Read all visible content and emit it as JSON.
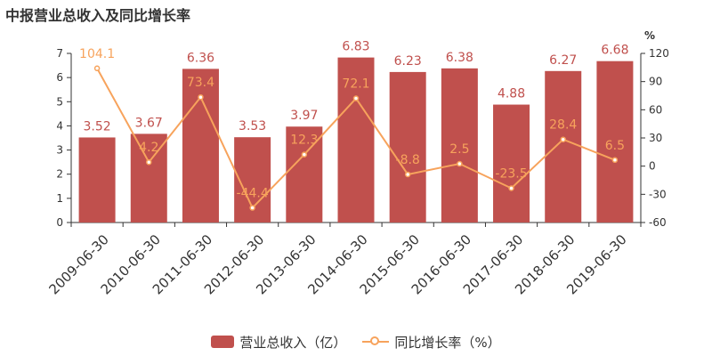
{
  "title": "中报营业总收入及同比增长率",
  "colors": {
    "bar": "#c0504d",
    "line": "#f7a35c",
    "bar_label": "#c0504d",
    "line_label": "#f7a35c",
    "axis": "#333333",
    "text": "#333333"
  },
  "legend": {
    "bar_label": "营业总收入（亿）",
    "line_label": "同比增长率（%）"
  },
  "chart_data": {
    "type": "bar",
    "title": "中报营业总收入及同比增长率",
    "categories": [
      "2009-06-30",
      "2010-06-30",
      "2011-06-30",
      "2012-06-30",
      "2013-06-30",
      "2014-06-30",
      "2015-06-30",
      "2016-06-30",
      "2017-06-30",
      "2018-06-30",
      "2019-06-30"
    ],
    "series": [
      {
        "name": "营业总收入（亿）",
        "type": "bar",
        "axis": "left",
        "values": [
          3.52,
          3.67,
          6.36,
          3.53,
          3.97,
          6.83,
          6.23,
          6.38,
          4.88,
          6.27,
          6.68
        ]
      },
      {
        "name": "同比增长率（%）",
        "type": "line",
        "axis": "right",
        "values": [
          104.1,
          4.2,
          73.4,
          -44.4,
          12.3,
          72.1,
          -8.8,
          2.5,
          -23.5,
          28.4,
          6.5
        ]
      }
    ],
    "y_left": {
      "ylim": [
        0,
        7
      ],
      "ticks": [
        0,
        1,
        2,
        3,
        4,
        5,
        6,
        7
      ]
    },
    "y_right": {
      "unit": "%",
      "ylim": [
        -60,
        120
      ],
      "ticks": [
        -60,
        -30,
        0,
        30,
        60,
        90,
        120
      ]
    },
    "grid": false,
    "legend_position": "bottom"
  }
}
